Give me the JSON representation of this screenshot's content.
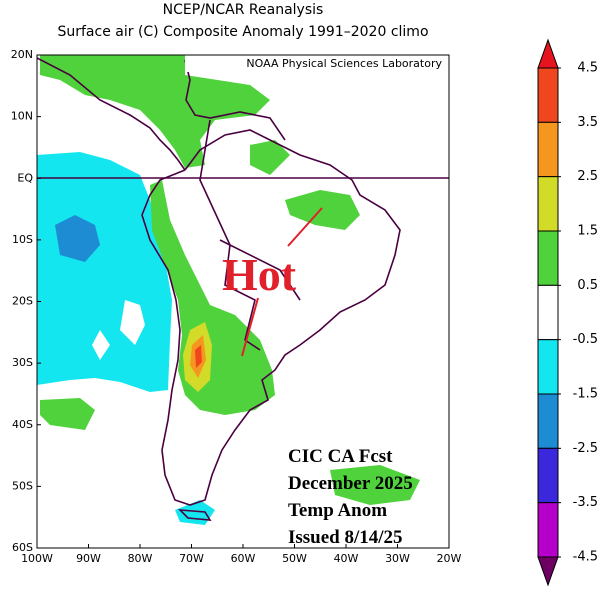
{
  "header": {
    "title": "NCEP/NCAR Reanalysis",
    "subtitle": "Surface air (C) Composite Anomaly 1991–2020 climo",
    "credit": "NOAA Physical Sciences Laboratory"
  },
  "map": {
    "lonlim": [
      -100,
      -20
    ],
    "latlim": [
      -60,
      20
    ],
    "lonticks": [
      {
        "value": -100,
        "label": "100W"
      },
      {
        "value": -90,
        "label": "90W"
      },
      {
        "value": -80,
        "label": "80W"
      },
      {
        "value": -70,
        "label": "70W"
      },
      {
        "value": -60,
        "label": "60W"
      },
      {
        "value": -50,
        "label": "50W"
      },
      {
        "value": -40,
        "label": "40W"
      },
      {
        "value": -30,
        "label": "30W"
      },
      {
        "value": -20,
        "label": "20W"
      }
    ],
    "latticks": [
      {
        "value": 20,
        "label": "20N"
      },
      {
        "value": 10,
        "label": "10N"
      },
      {
        "value": 0,
        "label": "EQ"
      },
      {
        "value": -10,
        "label": "10S"
      },
      {
        "value": -20,
        "label": "20S"
      },
      {
        "value": -30,
        "label": "30S"
      },
      {
        "value": -40,
        "label": "40S"
      },
      {
        "value": -50,
        "label": "50S"
      },
      {
        "value": -60,
        "label": "60S"
      }
    ]
  },
  "colorbar": {
    "levels": [
      4.5,
      3.5,
      2.5,
      1.5,
      0.5,
      -0.5,
      -1.5,
      -2.5,
      -3.5,
      -4.5
    ],
    "colors": [
      "#e6141e",
      "#f0461e",
      "#f5961e",
      "#d2dc28",
      "#50d23c",
      "#ffffff",
      "#14e6f0",
      "#1e8cd2",
      "#3c28dc",
      "#b400c8",
      "#6e0064"
    ]
  },
  "annotations": {
    "hot": "Hot",
    "forecast": [
      "CIC CA Fcst",
      "December 2025",
      "Temp Anom",
      "Issued 8/14/25"
    ]
  }
}
